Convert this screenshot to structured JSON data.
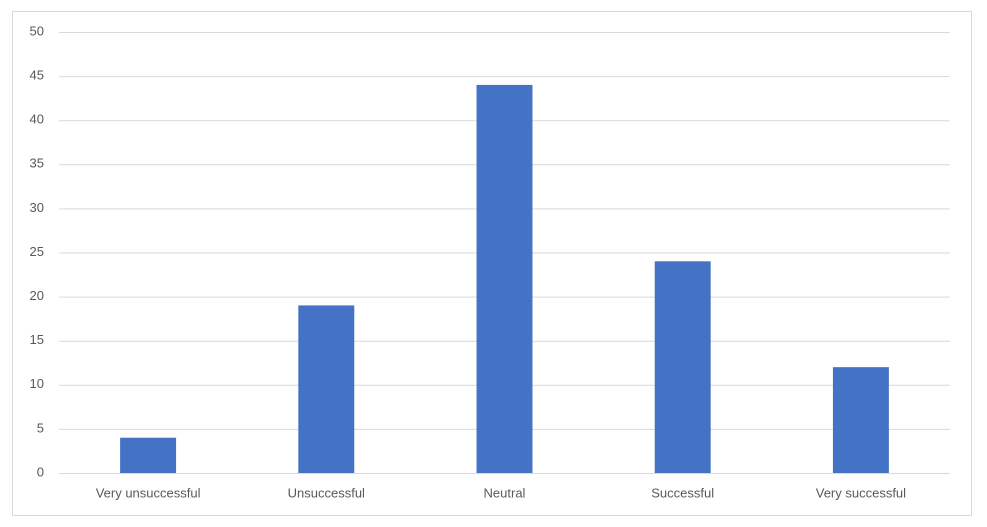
{
  "chart_data": {
    "type": "bar",
    "categories": [
      "Very unsuccessful",
      "Unsuccessful",
      "Neutral",
      "Successful",
      "Very successful"
    ],
    "values": [
      4,
      19,
      44,
      24,
      12
    ],
    "color": "#4472c4",
    "ylim": [
      0,
      50
    ],
    "yticks": [
      0,
      5,
      10,
      15,
      20,
      25,
      30,
      35,
      40,
      45,
      50
    ],
    "grid": true
  }
}
